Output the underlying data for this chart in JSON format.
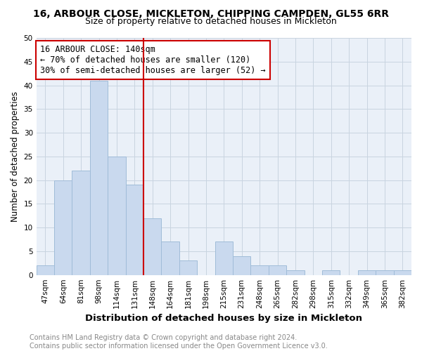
{
  "title": "16, ARBOUR CLOSE, MICKLETON, CHIPPING CAMPDEN, GL55 6RR",
  "subtitle": "Size of property relative to detached houses in Mickleton",
  "xlabel": "Distribution of detached houses by size in Mickleton",
  "ylabel": "Number of detached properties",
  "categories": [
    "47sqm",
    "64sqm",
    "81sqm",
    "98sqm",
    "114sqm",
    "131sqm",
    "148sqm",
    "164sqm",
    "181sqm",
    "198sqm",
    "215sqm",
    "231sqm",
    "248sqm",
    "265sqm",
    "282sqm",
    "298sqm",
    "315sqm",
    "332sqm",
    "349sqm",
    "365sqm",
    "382sqm"
  ],
  "values": [
    2,
    20,
    22,
    41,
    25,
    19,
    12,
    7,
    3,
    0,
    7,
    4,
    2,
    2,
    1,
    0,
    1,
    0,
    1,
    1,
    1
  ],
  "bar_color": "#c9d9ee",
  "bar_edge_color": "#a0bcd8",
  "vline_x_index": 6,
  "vline_color": "#cc0000",
  "annotation_line1": "16 ARBOUR CLOSE: 140sqm",
  "annotation_line2": "← 70% of detached houses are smaller (120)",
  "annotation_line3": "30% of semi-detached houses are larger (52) →",
  "annotation_box_edge_color": "#cc0000",
  "annotation_fontsize": 8.5,
  "ylim": [
    0,
    50
  ],
  "yticks": [
    0,
    5,
    10,
    15,
    20,
    25,
    30,
    35,
    40,
    45,
    50
  ],
  "footer_text": "Contains HM Land Registry data © Crown copyright and database right 2024.\nContains public sector information licensed under the Open Government Licence v3.0.",
  "background_color": "#ffffff",
  "plot_bg_color": "#eaf0f8",
  "grid_color": "#c8d4e0",
  "title_fontsize": 10,
  "subtitle_fontsize": 9,
  "xlabel_fontsize": 9.5,
  "ylabel_fontsize": 8.5,
  "tick_fontsize": 7.5,
  "footer_fontsize": 7
}
